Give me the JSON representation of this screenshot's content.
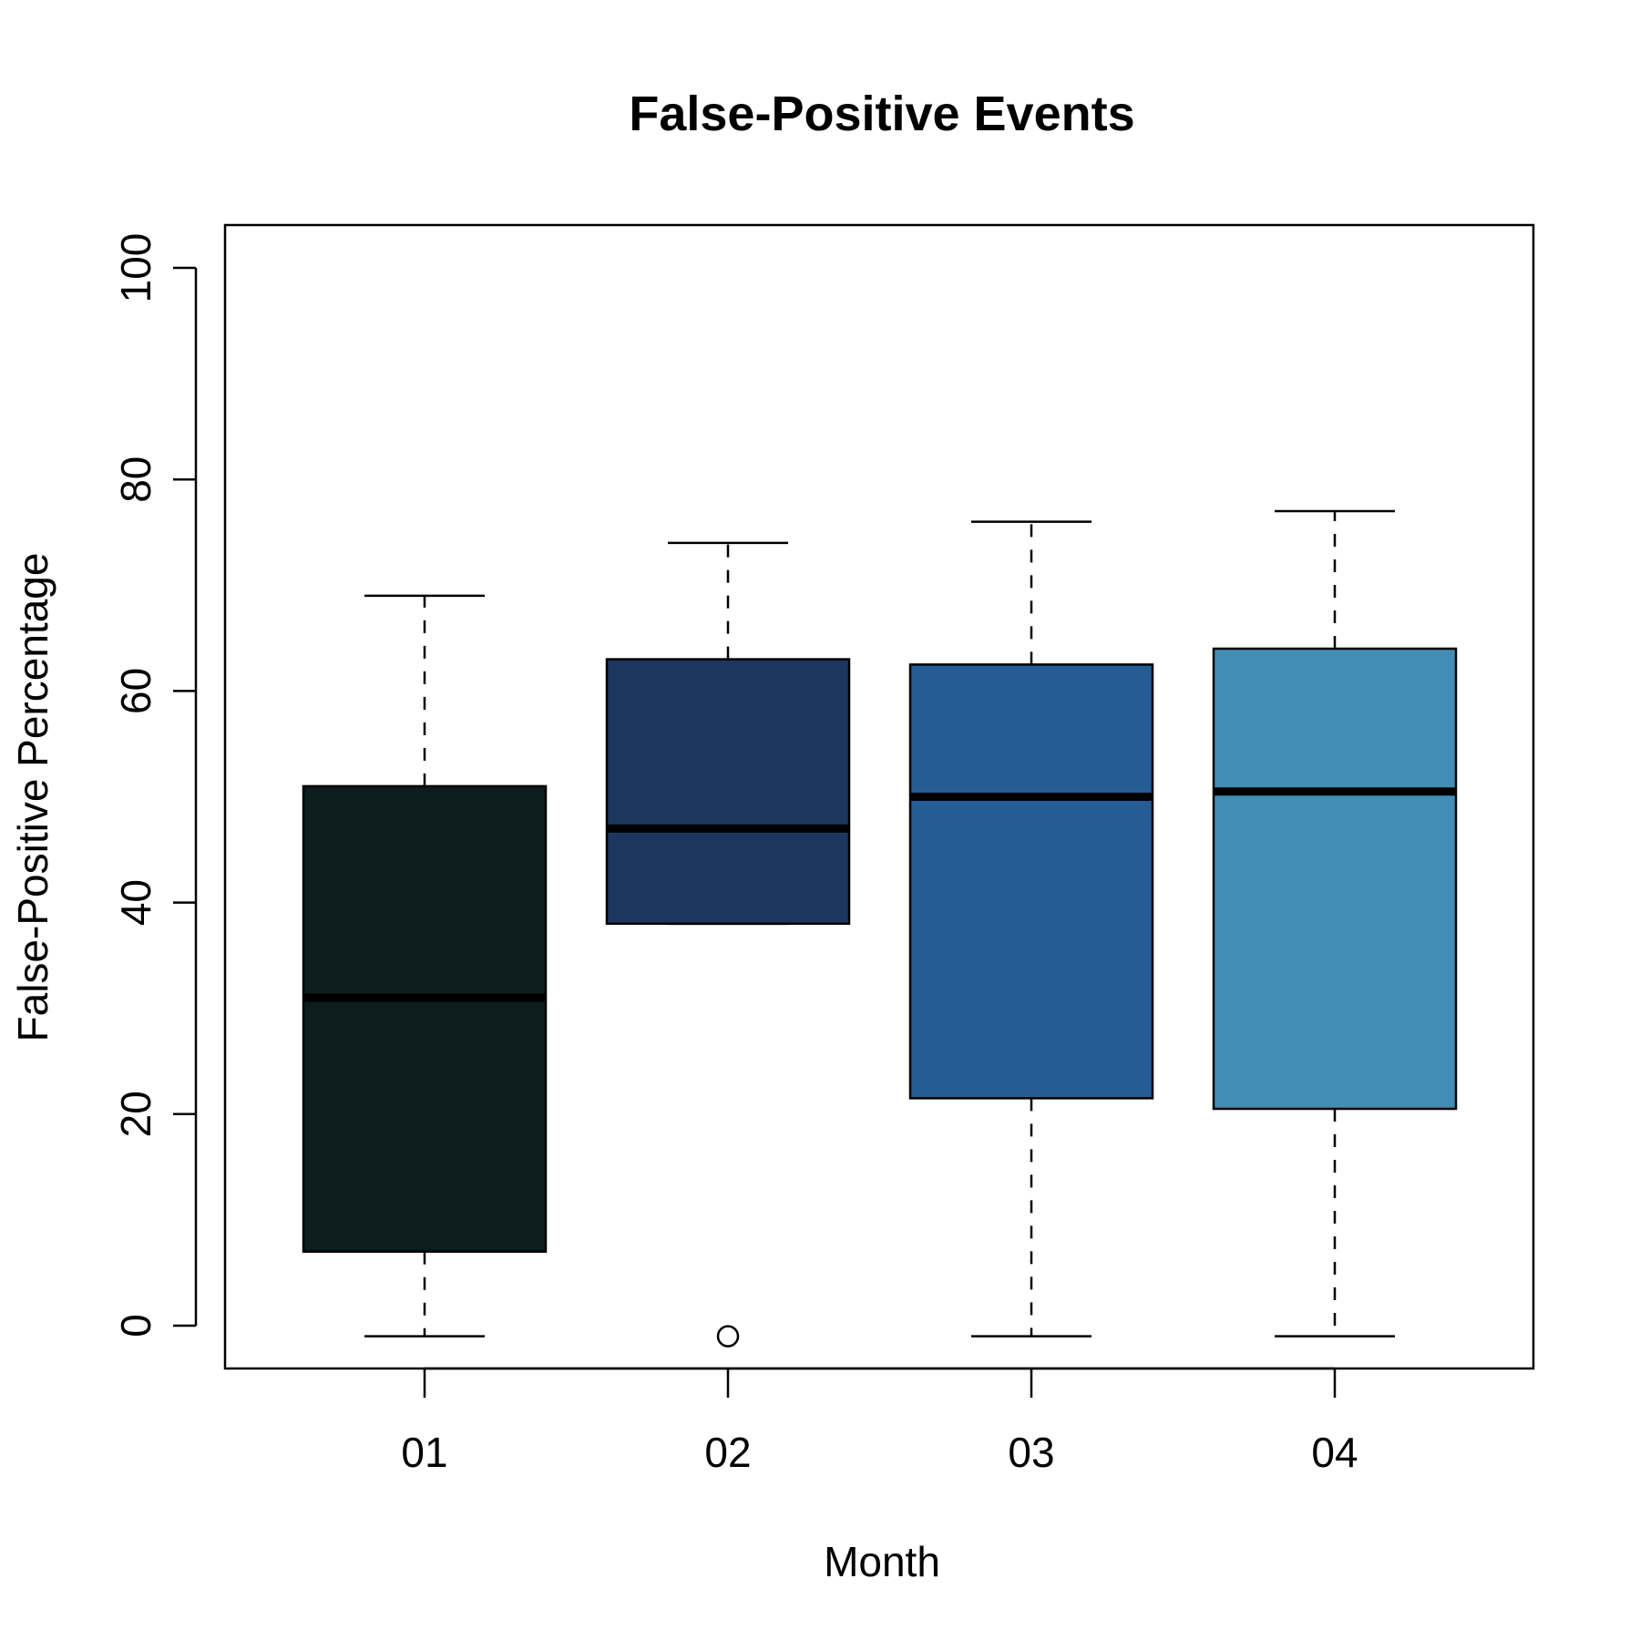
{
  "chart_data": {
    "type": "boxplot",
    "title": "False-Positive Events",
    "xlabel": "Month",
    "ylabel": "False-Positive Percentage",
    "ylim": [
      -4,
      104
    ],
    "y_ticks": [
      0,
      20,
      40,
      60,
      80,
      100
    ],
    "categories": [
      "01",
      "02",
      "03",
      "04"
    ],
    "boxes": [
      {
        "category": "01",
        "whisker_low": -1,
        "q1": 7,
        "median": 31,
        "q3": 51,
        "whisker_high": 69,
        "outliers": [],
        "color": "#0d1c1d"
      },
      {
        "category": "02",
        "whisker_low": 38,
        "q1": 38,
        "median": 47,
        "q3": 63,
        "whisker_high": 74,
        "outliers": [
          -1
        ],
        "color": "#1c365f"
      },
      {
        "category": "03",
        "whisker_low": -1,
        "q1": 21.5,
        "median": 50,
        "q3": 62.5,
        "whisker_high": 76,
        "outliers": [],
        "color": "#265c96"
      },
      {
        "category": "04",
        "whisker_low": -1,
        "q1": 20.5,
        "median": 50.5,
        "q3": 64,
        "whisker_high": 77,
        "outliers": [],
        "color": "#438db4"
      }
    ],
    "grid": false,
    "legend": "none"
  }
}
